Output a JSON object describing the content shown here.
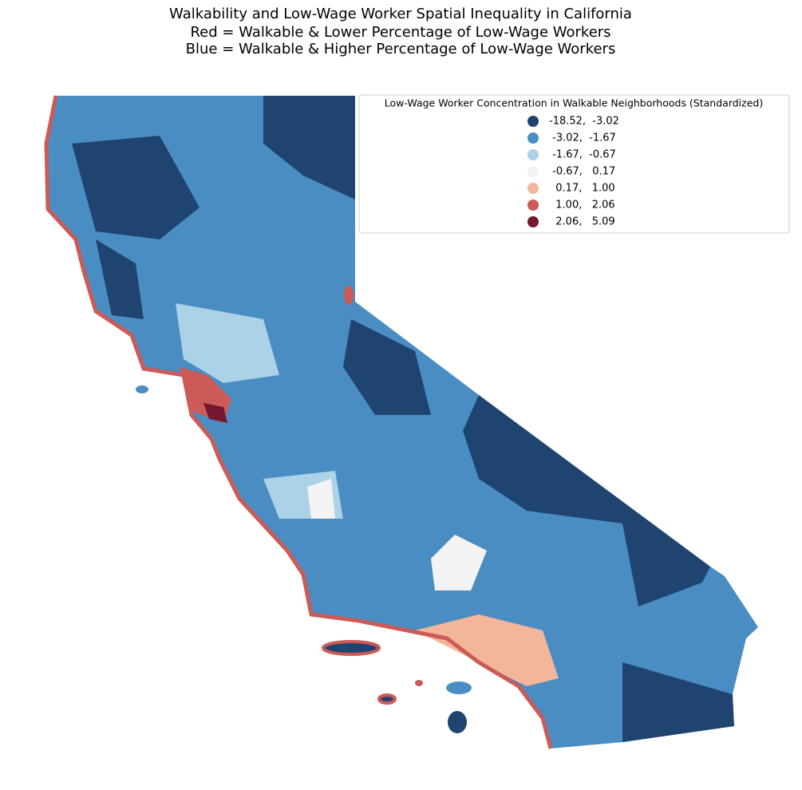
{
  "title": [
    "Walkability and Low-Wage Worker Spatial Inequality in California",
    "Red = Walkable & Lower Percentage of Low-Wage Workers",
    "Blue = Walkable & Higher Percentage of Low-Wage Workers"
  ],
  "legend": {
    "title": "Low-Wage Worker Concentration in Walkable Neighborhoods (Standardized)",
    "entries": [
      {
        "label": "-18.52,  -3.02",
        "color": "#1f4470"
      },
      {
        "label": " -3.02,  -1.67",
        "color": "#4a8dc2"
      },
      {
        "label": " -1.67,  -0.67",
        "color": "#abd2e6"
      },
      {
        "label": " -0.67,   0.17",
        "color": "#f3f3f3"
      },
      {
        "label": "  0.17,   1.00",
        "color": "#f4b69a"
      },
      {
        "label": "  1.00,   2.06",
        "color": "#cc5a56"
      },
      {
        "label": "  2.06,   5.09",
        "color": "#761732"
      }
    ]
  }
}
